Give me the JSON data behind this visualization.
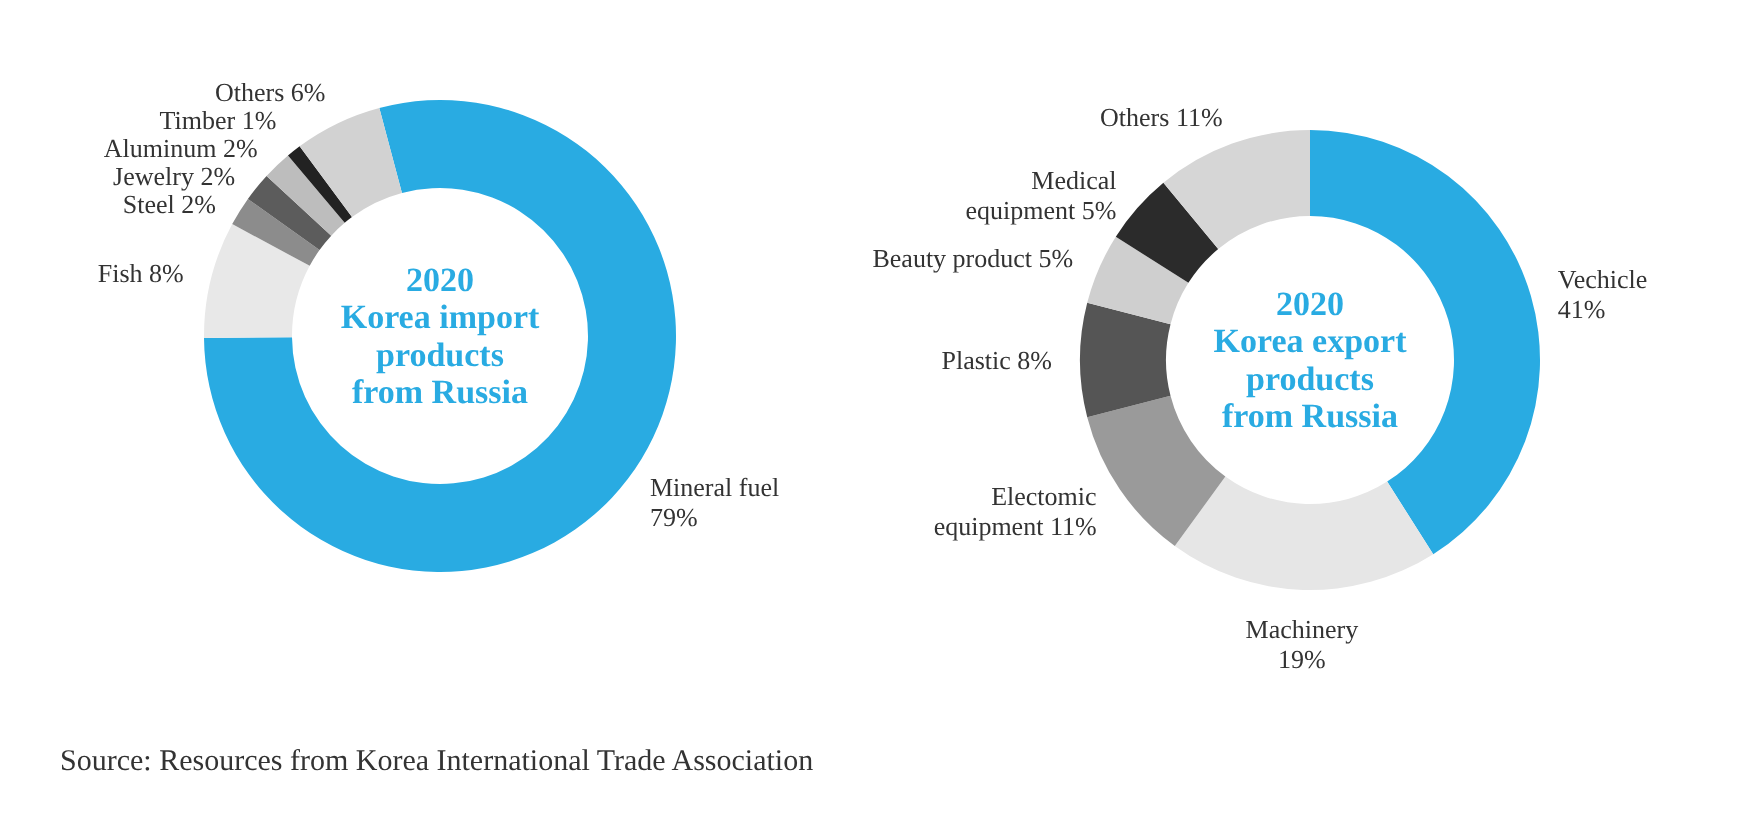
{
  "chart_data": [
    {
      "type": "donut",
      "title": "2020\nKorea import\nproducts\nfrom Russia",
      "categories": [
        "Mineral fuel",
        "Fish",
        "Steel",
        "Jewelry",
        "Aluminum",
        "Timber",
        "Others"
      ],
      "values": [
        79,
        8,
        2,
        2,
        2,
        1,
        6
      ],
      "value_labels": [
        "79%",
        "8%",
        "2%",
        "2%",
        "2%",
        "1%",
        "6%"
      ],
      "colors": [
        "#29abe2",
        "#e8e8e8",
        "#8c8c8c",
        "#5c5c5c",
        "#bdbdbd",
        "#222222",
        "#d2d2d2"
      ],
      "annotations": [
        "Source: Resources from Korea International Trade Association"
      ]
    },
    {
      "type": "donut",
      "title": "2020\nKorea export\nproducts\nfrom Russia",
      "categories": [
        "Vechicle",
        "Machinery",
        "Electomic equipment",
        "Plastic",
        "Beauty product",
        "Medical equipment",
        "Others"
      ],
      "values": [
        41,
        19,
        11,
        8,
        5,
        5,
        11
      ],
      "value_labels": [
        "41%",
        "19%",
        "11%",
        "8%",
        "5%",
        "5%",
        "11%"
      ],
      "colors": [
        "#29abe2",
        "#e6e6e6",
        "#9a9a9a",
        "#555555",
        "#cfcfcf",
        "#2b2b2b",
        "#d6d6d6"
      ]
    }
  ]
}
